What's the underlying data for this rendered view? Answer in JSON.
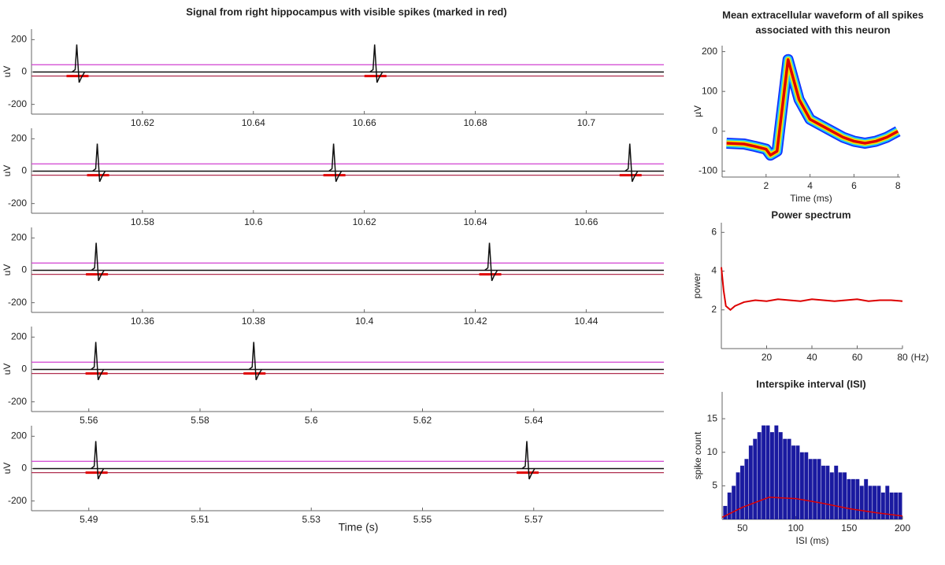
{
  "chart_data": [
    {
      "type": "trace",
      "title": "Signal from right hippocampus with visible spikes (marked in red)",
      "ylabel": "uV",
      "xlim": [
        10.6,
        10.714
      ],
      "xticks": [
        10.62,
        10.64,
        10.66,
        10.68,
        10.7
      ],
      "ylim": [
        -260,
        265
      ],
      "yticks": [
        -200,
        0,
        200
      ],
      "thresholds": [
        45,
        -25
      ],
      "spike_x": [
        10.6083,
        10.662
      ],
      "spike_peak": 170,
      "spike_trough": -65
    },
    {
      "type": "trace",
      "ylabel": "uV",
      "xlim": [
        10.56,
        10.674
      ],
      "xticks": [
        10.58,
        10.6,
        10.62,
        10.64,
        10.66
      ],
      "ylim": [
        -260,
        265
      ],
      "yticks": [
        -200,
        0,
        200
      ],
      "thresholds": [
        45,
        -25
      ],
      "spike_x": [
        10.572,
        10.6146,
        10.668
      ],
      "spike_peak": 170,
      "spike_trough": -65
    },
    {
      "type": "trace",
      "ylabel": "uV",
      "xlim": [
        10.34,
        10.454
      ],
      "xticks": [
        10.36,
        10.38,
        10.4,
        10.42,
        10.44
      ],
      "ylim": [
        -260,
        265
      ],
      "yticks": [
        -200,
        0,
        200
      ],
      "thresholds": [
        45,
        -25
      ],
      "spike_x": [
        10.3518,
        10.4227
      ],
      "spike_peak": 170,
      "spike_trough": -65
    },
    {
      "type": "trace",
      "ylabel": "uV",
      "xlim": [
        5.5497,
        5.6634
      ],
      "xticks": [
        5.56,
        5.58,
        5.6,
        5.62,
        5.64
      ],
      "ylim": [
        -260,
        265
      ],
      "yticks": [
        -200,
        0,
        200
      ],
      "thresholds": [
        45,
        -25
      ],
      "spike_x": [
        5.5614,
        5.5898
      ],
      "spike_peak": 170,
      "spike_trough": -65
    },
    {
      "type": "trace",
      "ylabel": "uV",
      "xlabel": "Time (s)",
      "xlim": [
        5.4797,
        5.5934
      ],
      "xticks": [
        5.49,
        5.51,
        5.53,
        5.55,
        5.57
      ],
      "ylim": [
        -260,
        265
      ],
      "yticks": [
        -200,
        0,
        200
      ],
      "thresholds": [
        45,
        -25
      ],
      "spike_x": [
        5.4914,
        5.5689
      ],
      "spike_peak": 170,
      "spike_trough": -65
    },
    {
      "type": "line",
      "title": [
        "Mean extracellular waveform of all spikes",
        "associated with this neuron"
      ],
      "xlabel": "Time (ms)",
      "ylabel": "µV",
      "xlim": [
        0,
        8.1
      ],
      "xticks": [
        2,
        4,
        6,
        8
      ],
      "ylim": [
        -115,
        215
      ],
      "yticks": [
        -100,
        0,
        100,
        200
      ],
      "x": [
        0.2,
        1,
        1.5,
        2,
        2.2,
        2.5,
        3,
        3.5,
        4,
        4.5,
        5,
        5.5,
        6,
        6.5,
        7,
        7.5,
        8
      ],
      "values": [
        -30,
        -32,
        -38,
        -45,
        -60,
        -50,
        180,
        80,
        30,
        15,
        0,
        -15,
        -25,
        -30,
        -25,
        -15,
        0
      ],
      "band_colors": [
        "#1030ff",
        "#20c8ff",
        "#f0e800",
        "#e00000"
      ]
    },
    {
      "type": "line",
      "title": "Power spectrum",
      "xlabel": "(Hz)",
      "ylabel": "power",
      "xlim": [
        0,
        80
      ],
      "xticks": [
        20,
        40,
        60,
        80
      ],
      "ylim": [
        0,
        6.5
      ],
      "yticks": [
        2,
        4,
        6
      ],
      "color": "#dd0000",
      "x": [
        0,
        1,
        2,
        4,
        6,
        10,
        15,
        20,
        25,
        30,
        35,
        40,
        45,
        50,
        55,
        60,
        65,
        70,
        75,
        80
      ],
      "values": [
        4.2,
        3,
        2.2,
        2.0,
        2.2,
        2.4,
        2.5,
        2.45,
        2.55,
        2.5,
        2.45,
        2.55,
        2.5,
        2.45,
        2.5,
        2.55,
        2.45,
        2.5,
        2.5,
        2.45
      ]
    },
    {
      "type": "histogram",
      "title": "Interspike interval (ISI)",
      "xlabel": "ISI (ms)",
      "ylabel": "spike count",
      "xlim": [
        31,
        200
      ],
      "xticks": [
        50,
        100,
        150,
        200
      ],
      "ylim": [
        0,
        19
      ],
      "yticks": [
        5,
        10,
        15
      ],
      "color": "#1a1aa0",
      "bins": [
        32,
        36,
        40,
        44,
        48,
        52,
        56,
        60,
        64,
        68,
        72,
        76,
        80,
        84,
        88,
        92,
        96,
        100,
        104,
        108,
        112,
        116,
        120,
        124,
        128,
        132,
        136,
        140,
        144,
        148,
        152,
        156,
        160,
        164,
        168,
        172,
        176,
        180,
        184,
        188,
        192,
        196,
        200
      ],
      "values": [
        2,
        4,
        5,
        7,
        8,
        9,
        11,
        12,
        13,
        14,
        14,
        13,
        14,
        13,
        12,
        12,
        11,
        11,
        10,
        10,
        9,
        9,
        9,
        8,
        8,
        7,
        8,
        7,
        7,
        6,
        6,
        6,
        5,
        6,
        5,
        5,
        5,
        4,
        5,
        4,
        4,
        4
      ],
      "fit": {
        "color": "#e00000",
        "x": [
          31,
          50,
          75,
          100,
          125,
          150,
          175,
          200
        ],
        "values": [
          0.3,
          1.8,
          3.3,
          3.1,
          2.4,
          1.6,
          1.0,
          0.5
        ]
      }
    }
  ]
}
